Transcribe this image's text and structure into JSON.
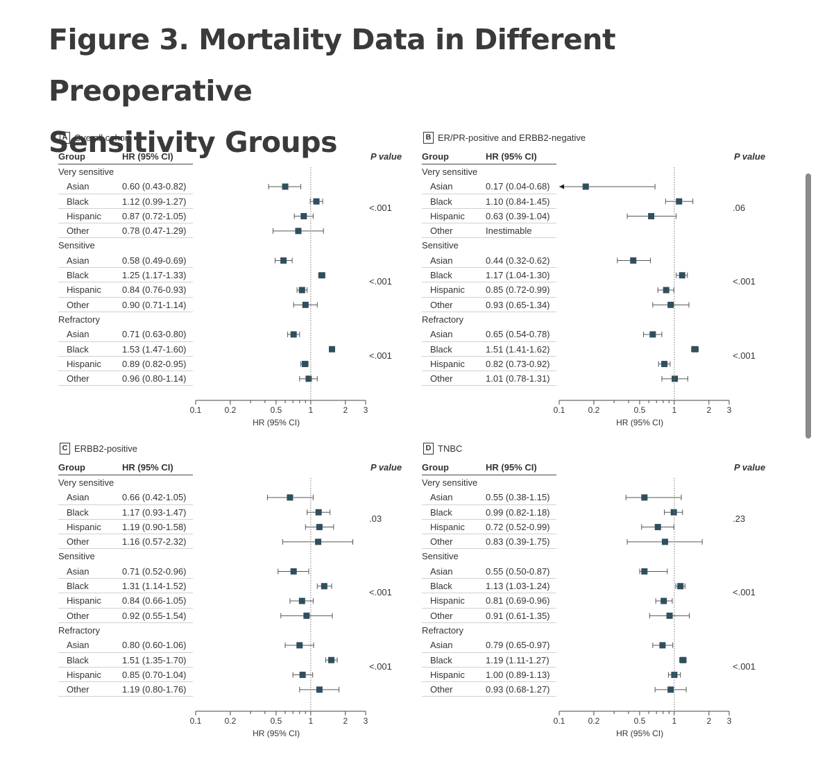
{
  "title_line1": "Figure 3.  Mortality Data in Different Preoperative",
  "title_line2": "Sensitivity Groups",
  "headers": {
    "group": "Group",
    "hr": "HR (95% CI)",
    "p": "P value"
  },
  "axis": {
    "label": "HR (95% CI)",
    "ticks": [
      0.1,
      0.2,
      0.5,
      1,
      2,
      3
    ],
    "tick_labels": [
      "0.1",
      "0.2",
      "0.5",
      "1",
      "2",
      "3"
    ],
    "minor_ticks": [
      0.3,
      0.4,
      0.6,
      0.7,
      0.8,
      0.9
    ],
    "scale": "log",
    "xlim": [
      0.1,
      3
    ],
    "reference_line": 1
  },
  "colors": {
    "marker": "#2f4f5f",
    "ci": "#555555",
    "text": "#333333"
  },
  "chart_data": [
    {
      "type": "forest",
      "letter": "A",
      "title": "Overall cohort",
      "sections": [
        {
          "label": "Very sensitive",
          "p": "<.001",
          "rows": [
            {
              "group": "Asian",
              "label": "0.60 (0.43-0.82)",
              "hr": 0.6,
              "lo": 0.43,
              "hi": 0.82
            },
            {
              "group": "Black",
              "label": "1.12 (0.99-1.27)",
              "hr": 1.12,
              "lo": 0.99,
              "hi": 1.27
            },
            {
              "group": "Hispanic",
              "label": "0.87 (0.72-1.05)",
              "hr": 0.87,
              "lo": 0.72,
              "hi": 1.05
            },
            {
              "group": "Other",
              "label": "0.78 (0.47-1.29)",
              "hr": 0.78,
              "lo": 0.47,
              "hi": 1.29
            }
          ]
        },
        {
          "label": "Sensitive",
          "p": "<.001",
          "rows": [
            {
              "group": "Asian",
              "label": "0.58 (0.49-0.69)",
              "hr": 0.58,
              "lo": 0.49,
              "hi": 0.69
            },
            {
              "group": "Black",
              "label": "1.25 (1.17-1.33)",
              "hr": 1.25,
              "lo": 1.17,
              "hi": 1.33
            },
            {
              "group": "Hispanic",
              "label": "0.84 (0.76-0.93)",
              "hr": 0.84,
              "lo": 0.76,
              "hi": 0.93
            },
            {
              "group": "Other",
              "label": "0.90 (0.71-1.14)",
              "hr": 0.9,
              "lo": 0.71,
              "hi": 1.14
            }
          ]
        },
        {
          "label": "Refractory",
          "p": "<.001",
          "rows": [
            {
              "group": "Asian",
              "label": "0.71 (0.63-0.80)",
              "hr": 0.71,
              "lo": 0.63,
              "hi": 0.8
            },
            {
              "group": "Black",
              "label": "1.53 (1.47-1.60)",
              "hr": 1.53,
              "lo": 1.47,
              "hi": 1.6
            },
            {
              "group": "Hispanic",
              "label": "0.89 (0.82-0.95)",
              "hr": 0.89,
              "lo": 0.82,
              "hi": 0.95
            },
            {
              "group": "Other",
              "label": "0.96 (0.80-1.14)",
              "hr": 0.96,
              "lo": 0.8,
              "hi": 1.14
            }
          ]
        }
      ]
    },
    {
      "type": "forest",
      "letter": "B",
      "title": "ER/PR-positive and ERBB2-negative",
      "sections": [
        {
          "label": "Very sensitive",
          "p": ".06",
          "rows": [
            {
              "group": "Asian",
              "label": "0.17 (0.04-0.68)",
              "hr": 0.17,
              "lo": 0.04,
              "hi": 0.68,
              "arrow_left": true
            },
            {
              "group": "Black",
              "label": "1.10 (0.84-1.45)",
              "hr": 1.1,
              "lo": 0.84,
              "hi": 1.45
            },
            {
              "group": "Hispanic",
              "label": "0.63 (0.39-1.04)",
              "hr": 0.63,
              "lo": 0.39,
              "hi": 1.04
            },
            {
              "group": "Other",
              "label": "Inestimable",
              "hr": null,
              "lo": null,
              "hi": null
            }
          ]
        },
        {
          "label": "Sensitive",
          "p": "<.001",
          "rows": [
            {
              "group": "Asian",
              "label": "0.44 (0.32-0.62)",
              "hr": 0.44,
              "lo": 0.32,
              "hi": 0.62
            },
            {
              "group": "Black",
              "label": "1.17 (1.04-1.30)",
              "hr": 1.17,
              "lo": 1.04,
              "hi": 1.3
            },
            {
              "group": "Hispanic",
              "label": "0.85 (0.72-0.99)",
              "hr": 0.85,
              "lo": 0.72,
              "hi": 0.99
            },
            {
              "group": "Other",
              "label": "0.93 (0.65-1.34)",
              "hr": 0.93,
              "lo": 0.65,
              "hi": 1.34
            }
          ]
        },
        {
          "label": "Refractory",
          "p": "<.001",
          "rows": [
            {
              "group": "Asian",
              "label": "0.65 (0.54-0.78)",
              "hr": 0.65,
              "lo": 0.54,
              "hi": 0.78
            },
            {
              "group": "Black",
              "label": "1.51 (1.41-1.62)",
              "hr": 1.51,
              "lo": 1.41,
              "hi": 1.62
            },
            {
              "group": "Hispanic",
              "label": "0.82 (0.73-0.92)",
              "hr": 0.82,
              "lo": 0.73,
              "hi": 0.92
            },
            {
              "group": "Other",
              "label": "1.01 (0.78-1.31)",
              "hr": 1.01,
              "lo": 0.78,
              "hi": 1.31
            }
          ]
        }
      ]
    },
    {
      "type": "forest",
      "letter": "C",
      "title": "ERBB2-positive",
      "sections": [
        {
          "label": "Very sensitive",
          "p": ".03",
          "rows": [
            {
              "group": "Asian",
              "label": "0.66 (0.42-1.05)",
              "hr": 0.66,
              "lo": 0.42,
              "hi": 1.05
            },
            {
              "group": "Black",
              "label": "1.17 (0.93-1.47)",
              "hr": 1.17,
              "lo": 0.93,
              "hi": 1.47
            },
            {
              "group": "Hispanic",
              "label": "1.19 (0.90-1.58)",
              "hr": 1.19,
              "lo": 0.9,
              "hi": 1.58
            },
            {
              "group": "Other",
              "label": "1.16 (0.57-2.32)",
              "hr": 1.16,
              "lo": 0.57,
              "hi": 2.32
            }
          ]
        },
        {
          "label": "Sensitive",
          "p": "<.001",
          "rows": [
            {
              "group": "Asian",
              "label": "0.71 (0.52-0.96)",
              "hr": 0.71,
              "lo": 0.52,
              "hi": 0.96
            },
            {
              "group": "Black",
              "label": "1.31 (1.14-1.52)",
              "hr": 1.31,
              "lo": 1.14,
              "hi": 1.52
            },
            {
              "group": "Hispanic",
              "label": "0.84 (0.66-1.05)",
              "hr": 0.84,
              "lo": 0.66,
              "hi": 1.05
            },
            {
              "group": "Other",
              "label": "0.92 (0.55-1.54)",
              "hr": 0.92,
              "lo": 0.55,
              "hi": 1.54
            }
          ]
        },
        {
          "label": "Refractory",
          "p": "<.001",
          "rows": [
            {
              "group": "Asian",
              "label": "0.80 (0.60-1.06)",
              "hr": 0.8,
              "lo": 0.6,
              "hi": 1.06
            },
            {
              "group": "Black",
              "label": "1.51 (1.35-1.70)",
              "hr": 1.51,
              "lo": 1.35,
              "hi": 1.7
            },
            {
              "group": "Hispanic",
              "label": "0.85 (0.70-1.04)",
              "hr": 0.85,
              "lo": 0.7,
              "hi": 1.04
            },
            {
              "group": "Other",
              "label": "1.19 (0.80-1.76)",
              "hr": 1.19,
              "lo": 0.8,
              "hi": 1.76
            }
          ]
        }
      ]
    },
    {
      "type": "forest",
      "letter": "D",
      "title": "TNBC",
      "sections": [
        {
          "label": "Very sensitive",
          "p": ".23",
          "rows": [
            {
              "group": "Asian",
              "label": "0.55 (0.38-1.15)",
              "hr": 0.55,
              "lo": 0.38,
              "hi": 1.15
            },
            {
              "group": "Black",
              "label": "0.99 (0.82-1.18)",
              "hr": 0.99,
              "lo": 0.82,
              "hi": 1.18
            },
            {
              "group": "Hispanic",
              "label": "0.72 (0.52-0.99)",
              "hr": 0.72,
              "lo": 0.52,
              "hi": 0.99
            },
            {
              "group": "Other",
              "label": "0.83 (0.39-1.75)",
              "hr": 0.83,
              "lo": 0.39,
              "hi": 1.75
            }
          ]
        },
        {
          "label": "Sensitive",
          "p": "<.001",
          "rows": [
            {
              "group": "Asian",
              "label": "0.55 (0.50-0.87)",
              "hr": 0.55,
              "lo": 0.5,
              "hi": 0.87
            },
            {
              "group": "Black",
              "label": "1.13 (1.03-1.24)",
              "hr": 1.13,
              "lo": 1.03,
              "hi": 1.24
            },
            {
              "group": "Hispanic",
              "label": "0.81 (0.69-0.96)",
              "hr": 0.81,
              "lo": 0.69,
              "hi": 0.96
            },
            {
              "group": "Other",
              "label": "0.91 (0.61-1.35)",
              "hr": 0.91,
              "lo": 0.61,
              "hi": 1.35
            }
          ]
        },
        {
          "label": "Refractory",
          "p": "<.001",
          "rows": [
            {
              "group": "Asian",
              "label": "0.79 (0.65-0.97)",
              "hr": 0.79,
              "lo": 0.65,
              "hi": 0.97
            },
            {
              "group": "Black",
              "label": "1.19 (1.11-1.27)",
              "hr": 1.19,
              "lo": 1.11,
              "hi": 1.27
            },
            {
              "group": "Hispanic",
              "label": "1.00 (0.89-1.13)",
              "hr": 1.0,
              "lo": 0.89,
              "hi": 1.13
            },
            {
              "group": "Other",
              "label": "0.93 (0.68-1.27)",
              "hr": 0.93,
              "lo": 0.68,
              "hi": 1.27
            }
          ]
        }
      ]
    }
  ]
}
